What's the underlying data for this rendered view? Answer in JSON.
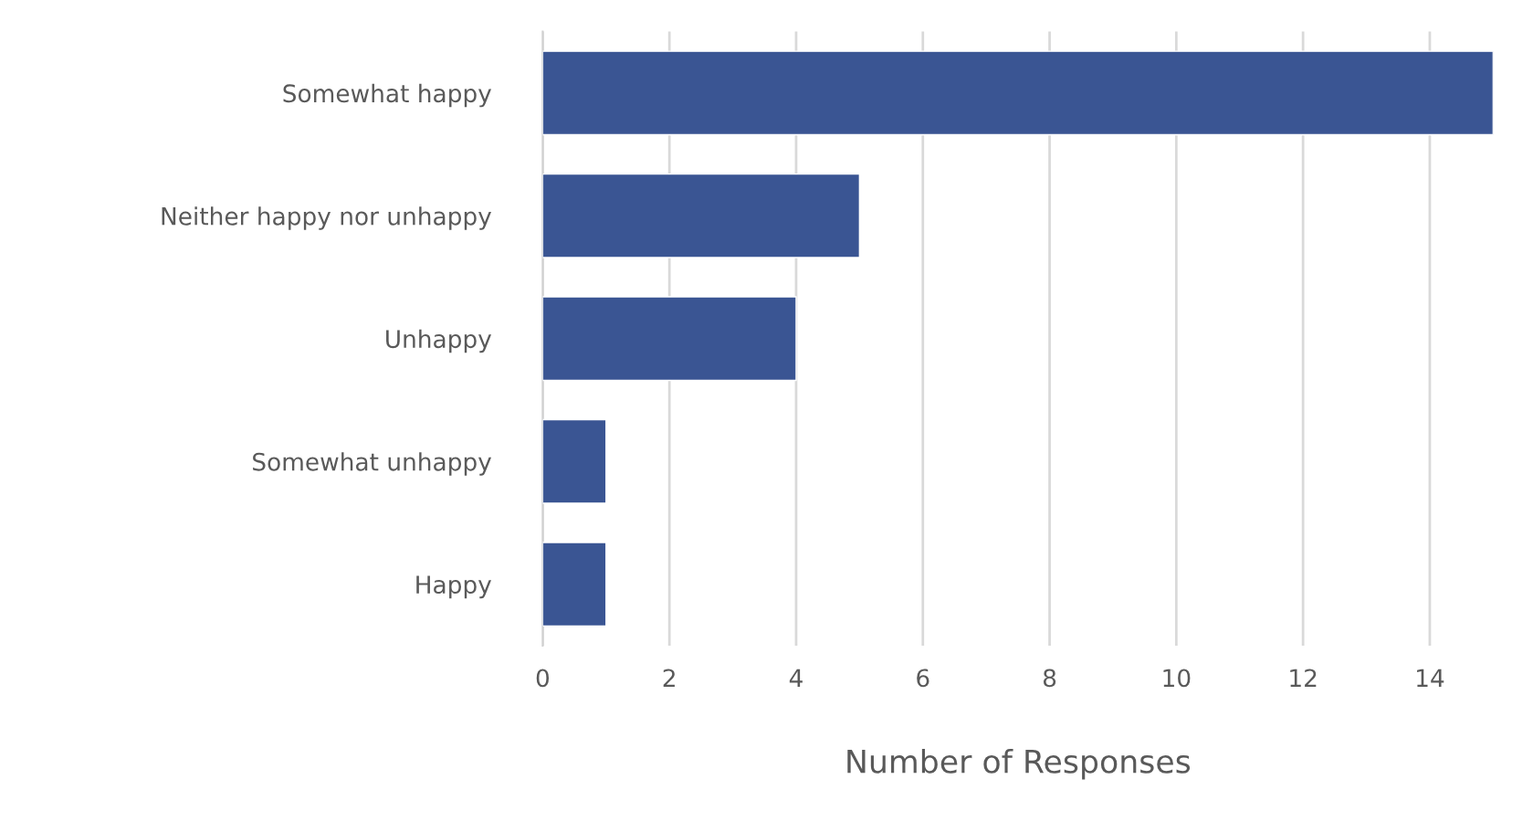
{
  "chart_data": {
    "type": "bar",
    "orientation": "horizontal",
    "xlabel": "Number of Responses",
    "categories": [
      "Somewhat happy",
      "Neither happy nor unhappy",
      "Unhappy",
      "Somewhat unhappy",
      "Happy"
    ],
    "values": [
      15,
      5,
      4,
      1,
      1
    ],
    "color": "#3a5593",
    "xlim": [
      0,
      15
    ],
    "xticks": [
      0,
      2,
      4,
      6,
      8,
      10,
      12,
      14
    ],
    "grid": "x"
  }
}
